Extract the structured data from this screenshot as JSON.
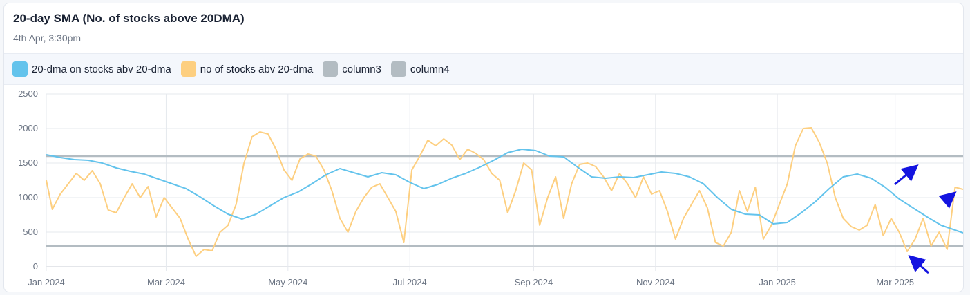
{
  "header": {
    "title": "20-day SMA (No. of stocks above 20DMA)",
    "subtitle": "4th Apr, 3:30pm"
  },
  "legend": [
    {
      "label": "20-dma on stocks abv 20-dma",
      "color": "#63c3ec"
    },
    {
      "label": "no of stocks abv 20-dma",
      "color": "#fdcf80"
    },
    {
      "label": "column3",
      "color": "#b3bcc2"
    },
    {
      "label": "column4",
      "color": "#b3bcc2"
    }
  ],
  "chart_data": {
    "type": "line",
    "y_ticks": [
      0,
      500,
      1000,
      1500,
      2000,
      2500
    ],
    "ylim": [
      0,
      2500
    ],
    "x_range": [
      "2024-01-01",
      "2025-04-04"
    ],
    "x_ticks": [
      {
        "label": "Jan 2024",
        "date": "2024-01-01"
      },
      {
        "label": "Mar 2024",
        "date": "2024-03-01"
      },
      {
        "label": "May 2024",
        "date": "2024-05-01"
      },
      {
        "label": "Jul 2024",
        "date": "2024-07-01"
      },
      {
        "label": "Sep 2024",
        "date": "2024-09-01"
      },
      {
        "label": "Nov 2024",
        "date": "2024-11-01"
      },
      {
        "label": "Jan 2025",
        "date": "2025-01-01"
      },
      {
        "label": "Mar 2025",
        "date": "2025-03-01"
      }
    ],
    "grid": true,
    "series": [
      {
        "name": "20-dma on stocks abv 20-dma",
        "color": "#63c3ec",
        "points": [
          [
            "2024-01-01",
            1620
          ],
          [
            "2024-01-08",
            1580
          ],
          [
            "2024-01-15",
            1550
          ],
          [
            "2024-01-22",
            1540
          ],
          [
            "2024-01-29",
            1500
          ],
          [
            "2024-02-05",
            1430
          ],
          [
            "2024-02-12",
            1380
          ],
          [
            "2024-02-19",
            1340
          ],
          [
            "2024-02-26",
            1270
          ],
          [
            "2024-03-04",
            1200
          ],
          [
            "2024-03-11",
            1130
          ],
          [
            "2024-03-18",
            1010
          ],
          [
            "2024-03-25",
            880
          ],
          [
            "2024-04-01",
            760
          ],
          [
            "2024-04-08",
            690
          ],
          [
            "2024-04-15",
            760
          ],
          [
            "2024-04-22",
            880
          ],
          [
            "2024-04-29",
            1000
          ],
          [
            "2024-05-06",
            1080
          ],
          [
            "2024-05-13",
            1200
          ],
          [
            "2024-05-20",
            1330
          ],
          [
            "2024-05-27",
            1420
          ],
          [
            "2024-06-03",
            1360
          ],
          [
            "2024-06-10",
            1300
          ],
          [
            "2024-06-17",
            1360
          ],
          [
            "2024-06-24",
            1330
          ],
          [
            "2024-07-01",
            1220
          ],
          [
            "2024-07-08",
            1130
          ],
          [
            "2024-07-15",
            1190
          ],
          [
            "2024-07-22",
            1280
          ],
          [
            "2024-07-29",
            1350
          ],
          [
            "2024-08-05",
            1440
          ],
          [
            "2024-08-12",
            1540
          ],
          [
            "2024-08-19",
            1650
          ],
          [
            "2024-08-26",
            1700
          ],
          [
            "2024-09-02",
            1680
          ],
          [
            "2024-09-09",
            1600
          ],
          [
            "2024-09-16",
            1590
          ],
          [
            "2024-09-23",
            1440
          ],
          [
            "2024-09-30",
            1300
          ],
          [
            "2024-10-07",
            1280
          ],
          [
            "2024-10-14",
            1300
          ],
          [
            "2024-10-21",
            1290
          ],
          [
            "2024-10-28",
            1330
          ],
          [
            "2024-11-04",
            1370
          ],
          [
            "2024-11-11",
            1350
          ],
          [
            "2024-11-18",
            1300
          ],
          [
            "2024-11-25",
            1200
          ],
          [
            "2024-12-02",
            1000
          ],
          [
            "2024-12-09",
            830
          ],
          [
            "2024-12-16",
            760
          ],
          [
            "2024-12-23",
            750
          ],
          [
            "2024-12-30",
            620
          ],
          [
            "2025-01-06",
            640
          ],
          [
            "2025-01-13",
            780
          ],
          [
            "2025-01-20",
            940
          ],
          [
            "2025-01-27",
            1130
          ],
          [
            "2025-02-03",
            1300
          ],
          [
            "2025-02-10",
            1340
          ],
          [
            "2025-02-17",
            1280
          ],
          [
            "2025-02-24",
            1150
          ],
          [
            "2025-03-03",
            980
          ],
          [
            "2025-03-10",
            850
          ],
          [
            "2025-03-17",
            720
          ],
          [
            "2025-03-24",
            600
          ],
          [
            "2025-03-31",
            530
          ],
          [
            "2025-04-04",
            490
          ]
        ]
      },
      {
        "name": "no of stocks abv 20-dma",
        "color": "#fdcf80",
        "points": [
          [
            "2024-01-01",
            1250
          ],
          [
            "2024-01-04",
            830
          ],
          [
            "2024-01-08",
            1050
          ],
          [
            "2024-01-12",
            1200
          ],
          [
            "2024-01-16",
            1350
          ],
          [
            "2024-01-20",
            1250
          ],
          [
            "2024-01-24",
            1390
          ],
          [
            "2024-01-28",
            1200
          ],
          [
            "2024-02-01",
            820
          ],
          [
            "2024-02-05",
            780
          ],
          [
            "2024-02-09",
            1000
          ],
          [
            "2024-02-13",
            1200
          ],
          [
            "2024-02-17",
            1000
          ],
          [
            "2024-02-21",
            1160
          ],
          [
            "2024-02-25",
            720
          ],
          [
            "2024-02-29",
            1000
          ],
          [
            "2024-03-04",
            850
          ],
          [
            "2024-03-08",
            700
          ],
          [
            "2024-03-12",
            400
          ],
          [
            "2024-03-16",
            150
          ],
          [
            "2024-03-20",
            250
          ],
          [
            "2024-03-24",
            230
          ],
          [
            "2024-03-28",
            500
          ],
          [
            "2024-04-01",
            600
          ],
          [
            "2024-04-05",
            900
          ],
          [
            "2024-04-09",
            1500
          ],
          [
            "2024-04-13",
            1880
          ],
          [
            "2024-04-17",
            1950
          ],
          [
            "2024-04-21",
            1920
          ],
          [
            "2024-04-25",
            1700
          ],
          [
            "2024-04-29",
            1400
          ],
          [
            "2024-05-03",
            1250
          ],
          [
            "2024-05-07",
            1560
          ],
          [
            "2024-05-11",
            1630
          ],
          [
            "2024-05-15",
            1600
          ],
          [
            "2024-05-19",
            1400
          ],
          [
            "2024-05-23",
            1100
          ],
          [
            "2024-05-27",
            700
          ],
          [
            "2024-05-31",
            500
          ],
          [
            "2024-06-04",
            800
          ],
          [
            "2024-06-08",
            1000
          ],
          [
            "2024-06-12",
            1150
          ],
          [
            "2024-06-16",
            1200
          ],
          [
            "2024-06-20",
            1000
          ],
          [
            "2024-06-24",
            800
          ],
          [
            "2024-06-28",
            350
          ],
          [
            "2024-07-02",
            1400
          ],
          [
            "2024-07-06",
            1600
          ],
          [
            "2024-07-10",
            1830
          ],
          [
            "2024-07-14",
            1750
          ],
          [
            "2024-07-18",
            1850
          ],
          [
            "2024-07-22",
            1760
          ],
          [
            "2024-07-26",
            1550
          ],
          [
            "2024-07-30",
            1700
          ],
          [
            "2024-08-03",
            1640
          ],
          [
            "2024-08-07",
            1550
          ],
          [
            "2024-08-11",
            1350
          ],
          [
            "2024-08-15",
            1250
          ],
          [
            "2024-08-19",
            780
          ],
          [
            "2024-08-23",
            1100
          ],
          [
            "2024-08-27",
            1500
          ],
          [
            "2024-08-31",
            1400
          ],
          [
            "2024-09-04",
            600
          ],
          [
            "2024-09-08",
            1000
          ],
          [
            "2024-09-12",
            1300
          ],
          [
            "2024-09-16",
            700
          ],
          [
            "2024-09-20",
            1200
          ],
          [
            "2024-09-24",
            1480
          ],
          [
            "2024-09-28",
            1500
          ],
          [
            "2024-10-02",
            1450
          ],
          [
            "2024-10-06",
            1300
          ],
          [
            "2024-10-10",
            1100
          ],
          [
            "2024-10-14",
            1350
          ],
          [
            "2024-10-18",
            1200
          ],
          [
            "2024-10-22",
            1000
          ],
          [
            "2024-10-26",
            1300
          ],
          [
            "2024-10-30",
            1050
          ],
          [
            "2024-11-03",
            1100
          ],
          [
            "2024-11-07",
            800
          ],
          [
            "2024-11-11",
            400
          ],
          [
            "2024-11-15",
            700
          ],
          [
            "2024-11-19",
            900
          ],
          [
            "2024-11-23",
            1100
          ],
          [
            "2024-11-27",
            850
          ],
          [
            "2024-12-01",
            350
          ],
          [
            "2024-12-05",
            300
          ],
          [
            "2024-12-09",
            500
          ],
          [
            "2024-12-13",
            1100
          ],
          [
            "2024-12-17",
            800
          ],
          [
            "2024-12-21",
            1150
          ],
          [
            "2024-12-25",
            400
          ],
          [
            "2024-12-29",
            600
          ],
          [
            "2025-01-02",
            900
          ],
          [
            "2025-01-06",
            1200
          ],
          [
            "2025-01-10",
            1750
          ],
          [
            "2025-01-14",
            2000
          ],
          [
            "2025-01-18",
            2010
          ],
          [
            "2025-01-22",
            1800
          ],
          [
            "2025-01-26",
            1500
          ],
          [
            "2025-01-30",
            1000
          ],
          [
            "2025-02-03",
            700
          ],
          [
            "2025-02-07",
            580
          ],
          [
            "2025-02-11",
            530
          ],
          [
            "2025-02-15",
            600
          ],
          [
            "2025-02-19",
            900
          ],
          [
            "2025-02-23",
            450
          ],
          [
            "2025-02-27",
            700
          ],
          [
            "2025-03-03",
            500
          ],
          [
            "2025-03-07",
            220
          ],
          [
            "2025-03-11",
            400
          ],
          [
            "2025-03-15",
            700
          ],
          [
            "2025-03-19",
            300
          ],
          [
            "2025-03-23",
            500
          ],
          [
            "2025-03-27",
            250
          ],
          [
            "2025-03-31",
            1150
          ],
          [
            "2025-04-04",
            1120
          ]
        ]
      },
      {
        "name": "column3",
        "color": "#b3bcc2",
        "points": [
          [
            "2024-01-01",
            1600
          ],
          [
            "2025-04-04",
            1600
          ]
        ]
      },
      {
        "name": "column4",
        "color": "#b3bcc2",
        "points": [
          [
            "2024-01-01",
            300
          ],
          [
            "2025-04-04",
            300
          ]
        ]
      }
    ]
  }
}
